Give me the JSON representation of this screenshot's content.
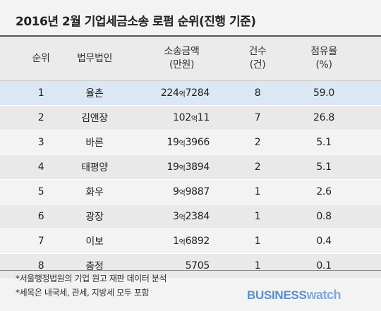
{
  "title": "2016년 2월 기업세금소송 로펌 순위(진행 기준)",
  "header": {
    "rank": "순위",
    "firm": "법무법인",
    "amount_line1": "소송금액",
    "amount_line2": "(만원)",
    "count_line1": "건수",
    "count_line2": "(건)",
    "share_line1": "점유율",
    "share_line2": "(%)"
  },
  "rows": [
    {
      "rank": "1",
      "firm": "율촌",
      "amt_a": "224",
      "amt_u": "억",
      "amt_b": "7284",
      "count": "8",
      "share": "59.0"
    },
    {
      "rank": "2",
      "firm": "김앤장",
      "amt_a": "102",
      "amt_u": "억",
      "amt_b": "11",
      "count": "7",
      "share": "26.8"
    },
    {
      "rank": "3",
      "firm": "바른",
      "amt_a": "19",
      "amt_u": "억",
      "amt_b": "3966",
      "count": "2",
      "share": "5.1"
    },
    {
      "rank": "4",
      "firm": "태평양",
      "amt_a": "19",
      "amt_u": "억",
      "amt_b": "3894",
      "count": "2",
      "share": "5.1"
    },
    {
      "rank": "5",
      "firm": "화우",
      "amt_a": "9",
      "amt_u": "억",
      "amt_b": "9887",
      "count": "1",
      "share": "2.6"
    },
    {
      "rank": "6",
      "firm": "광장",
      "amt_a": "3",
      "amt_u": "억",
      "amt_b": "2384",
      "count": "1",
      "share": "0.8"
    },
    {
      "rank": "7",
      "firm": "이보",
      "amt_a": "1",
      "amt_u": "억",
      "amt_b": "6892",
      "count": "1",
      "share": "0.4"
    },
    {
      "rank": "8",
      "firm": "충정",
      "amt_a": "",
      "amt_u": "",
      "amt_b": "5705",
      "count": "1",
      "share": "0.1"
    }
  ],
  "notes": {
    "note1": "*서울행정법원의 기업 원고 재판 데이터 분석",
    "note2": "*세목은 내국세, 관세, 지방세 모두 포함"
  },
  "logo": {
    "part1": "BUSINESS",
    "part2": "watch"
  },
  "colors": {
    "highlight_row": "#dbe8f4",
    "logo_blue": "#5b8fc6"
  }
}
